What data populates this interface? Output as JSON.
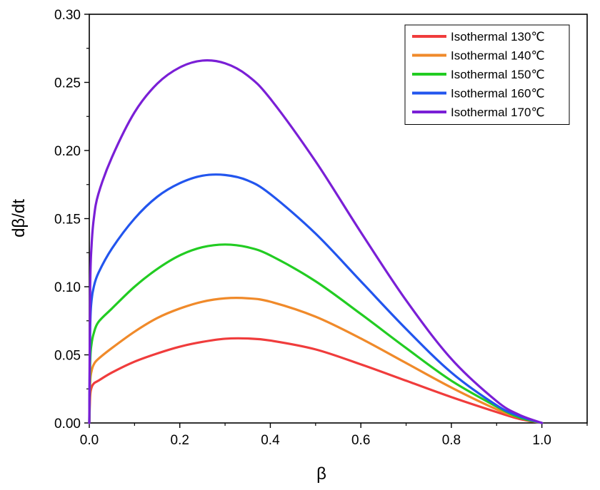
{
  "chart_data": {
    "type": "line",
    "title": "",
    "xlabel": "β",
    "ylabel": "dβ/dt",
    "xlim": [
      0.0,
      1.1
    ],
    "ylim": [
      0.0,
      0.3
    ],
    "x_ticks": [
      "0.0",
      "0.2",
      "0.4",
      "0.6",
      "0.8",
      "1.0"
    ],
    "y_ticks": [
      "0.00",
      "0.05",
      "0.10",
      "0.15",
      "0.20",
      "0.25",
      "0.30"
    ],
    "grid": false,
    "legend_position": "top-right",
    "series": [
      {
        "name": "Isothermal 130℃",
        "color": "#f03c3c",
        "points": [
          [
            0,
            0
          ],
          [
            0.002,
            0.02
          ],
          [
            0.005,
            0.026
          ],
          [
            0.01,
            0.029
          ],
          [
            0.02,
            0.031
          ],
          [
            0.05,
            0.037
          ],
          [
            0.1,
            0.045
          ],
          [
            0.15,
            0.051
          ],
          [
            0.2,
            0.056
          ],
          [
            0.25,
            0.0595
          ],
          [
            0.3,
            0.0618
          ],
          [
            0.35,
            0.062
          ],
          [
            0.4,
            0.0605
          ],
          [
            0.5,
            0.054
          ],
          [
            0.6,
            0.043
          ],
          [
            0.7,
            0.031
          ],
          [
            0.8,
            0.019
          ],
          [
            0.9,
            0.008
          ],
          [
            0.95,
            0.003
          ],
          [
            1.0,
            0
          ]
        ]
      },
      {
        "name": "Isothermal 140℃",
        "color": "#f08a2a",
        "points": [
          [
            0,
            0
          ],
          [
            0.002,
            0.03
          ],
          [
            0.005,
            0.038
          ],
          [
            0.01,
            0.043
          ],
          [
            0.02,
            0.047
          ],
          [
            0.05,
            0.055
          ],
          [
            0.1,
            0.067
          ],
          [
            0.15,
            0.077
          ],
          [
            0.2,
            0.084
          ],
          [
            0.25,
            0.089
          ],
          [
            0.3,
            0.0915
          ],
          [
            0.35,
            0.0915
          ],
          [
            0.4,
            0.089
          ],
          [
            0.5,
            0.078
          ],
          [
            0.6,
            0.062
          ],
          [
            0.7,
            0.044
          ],
          [
            0.8,
            0.026
          ],
          [
            0.9,
            0.01
          ],
          [
            0.95,
            0.004
          ],
          [
            1.0,
            0
          ]
        ]
      },
      {
        "name": "Isothermal 150℃",
        "color": "#22cc22",
        "points": [
          [
            0,
            0
          ],
          [
            0.002,
            0.045
          ],
          [
            0.005,
            0.058
          ],
          [
            0.01,
            0.066
          ],
          [
            0.02,
            0.074
          ],
          [
            0.05,
            0.084
          ],
          [
            0.1,
            0.1
          ],
          [
            0.15,
            0.113
          ],
          [
            0.2,
            0.123
          ],
          [
            0.25,
            0.129
          ],
          [
            0.3,
            0.131
          ],
          [
            0.35,
            0.129
          ],
          [
            0.4,
            0.123
          ],
          [
            0.5,
            0.104
          ],
          [
            0.6,
            0.08
          ],
          [
            0.7,
            0.055
          ],
          [
            0.8,
            0.031
          ],
          [
            0.9,
            0.012
          ],
          [
            0.95,
            0.004
          ],
          [
            1.0,
            0
          ]
        ]
      },
      {
        "name": "Isothermal 160℃",
        "color": "#2255ee",
        "points": [
          [
            0,
            0
          ],
          [
            0.002,
            0.07
          ],
          [
            0.005,
            0.09
          ],
          [
            0.01,
            0.1
          ],
          [
            0.02,
            0.11
          ],
          [
            0.05,
            0.128
          ],
          [
            0.1,
            0.15
          ],
          [
            0.15,
            0.166
          ],
          [
            0.2,
            0.176
          ],
          [
            0.25,
            0.1815
          ],
          [
            0.3,
            0.182
          ],
          [
            0.35,
            0.178
          ],
          [
            0.4,
            0.168
          ],
          [
            0.5,
            0.139
          ],
          [
            0.6,
            0.104
          ],
          [
            0.7,
            0.069
          ],
          [
            0.8,
            0.037
          ],
          [
            0.9,
            0.013
          ],
          [
            0.95,
            0.005
          ],
          [
            1.0,
            0
          ]
        ]
      },
      {
        "name": "Isothermal 170℃",
        "color": "#7a1fd6",
        "points": [
          [
            0,
            0
          ],
          [
            0.002,
            0.1
          ],
          [
            0.005,
            0.13
          ],
          [
            0.01,
            0.15
          ],
          [
            0.02,
            0.168
          ],
          [
            0.05,
            0.195
          ],
          [
            0.1,
            0.228
          ],
          [
            0.15,
            0.249
          ],
          [
            0.2,
            0.261
          ],
          [
            0.25,
            0.266
          ],
          [
            0.3,
            0.264
          ],
          [
            0.35,
            0.255
          ],
          [
            0.4,
            0.238
          ],
          [
            0.5,
            0.192
          ],
          [
            0.6,
            0.14
          ],
          [
            0.7,
            0.09
          ],
          [
            0.8,
            0.047
          ],
          [
            0.9,
            0.016
          ],
          [
            0.95,
            0.006
          ],
          [
            1.0,
            0
          ]
        ]
      }
    ]
  }
}
